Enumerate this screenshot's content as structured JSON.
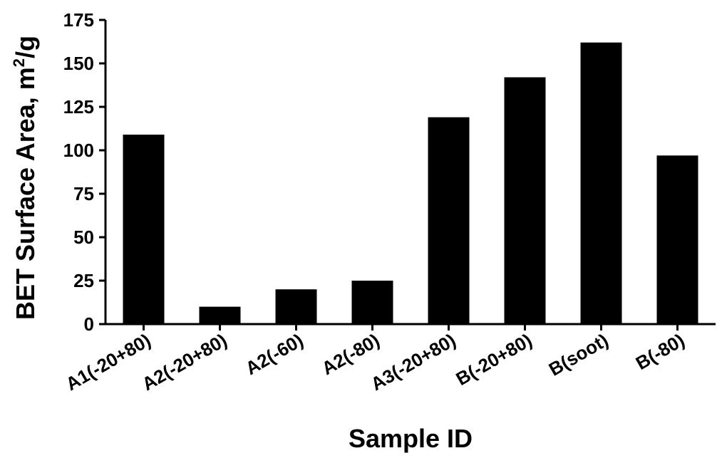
{
  "chart_data": {
    "type": "bar",
    "xlabel": "Sample ID",
    "ylabel": "BET Surface Area, m",
    "ylabel_superscript": "2",
    "ylabel_suffix": "/g",
    "categories": [
      "A1(-20+80)",
      "A2(-20+80)",
      "A2(-60)",
      "A2(-80)",
      "A3(-20+80)",
      "B(-20+80)",
      "B(soot)",
      "B(-80)"
    ],
    "values": [
      109,
      10,
      20,
      25,
      119,
      142,
      162,
      97
    ],
    "ylim": [
      0,
      175
    ],
    "yticks": [
      0,
      25,
      50,
      75,
      100,
      125,
      150,
      175
    ],
    "grid": false,
    "bar_color": "#000000",
    "axis_color": "#000000"
  }
}
